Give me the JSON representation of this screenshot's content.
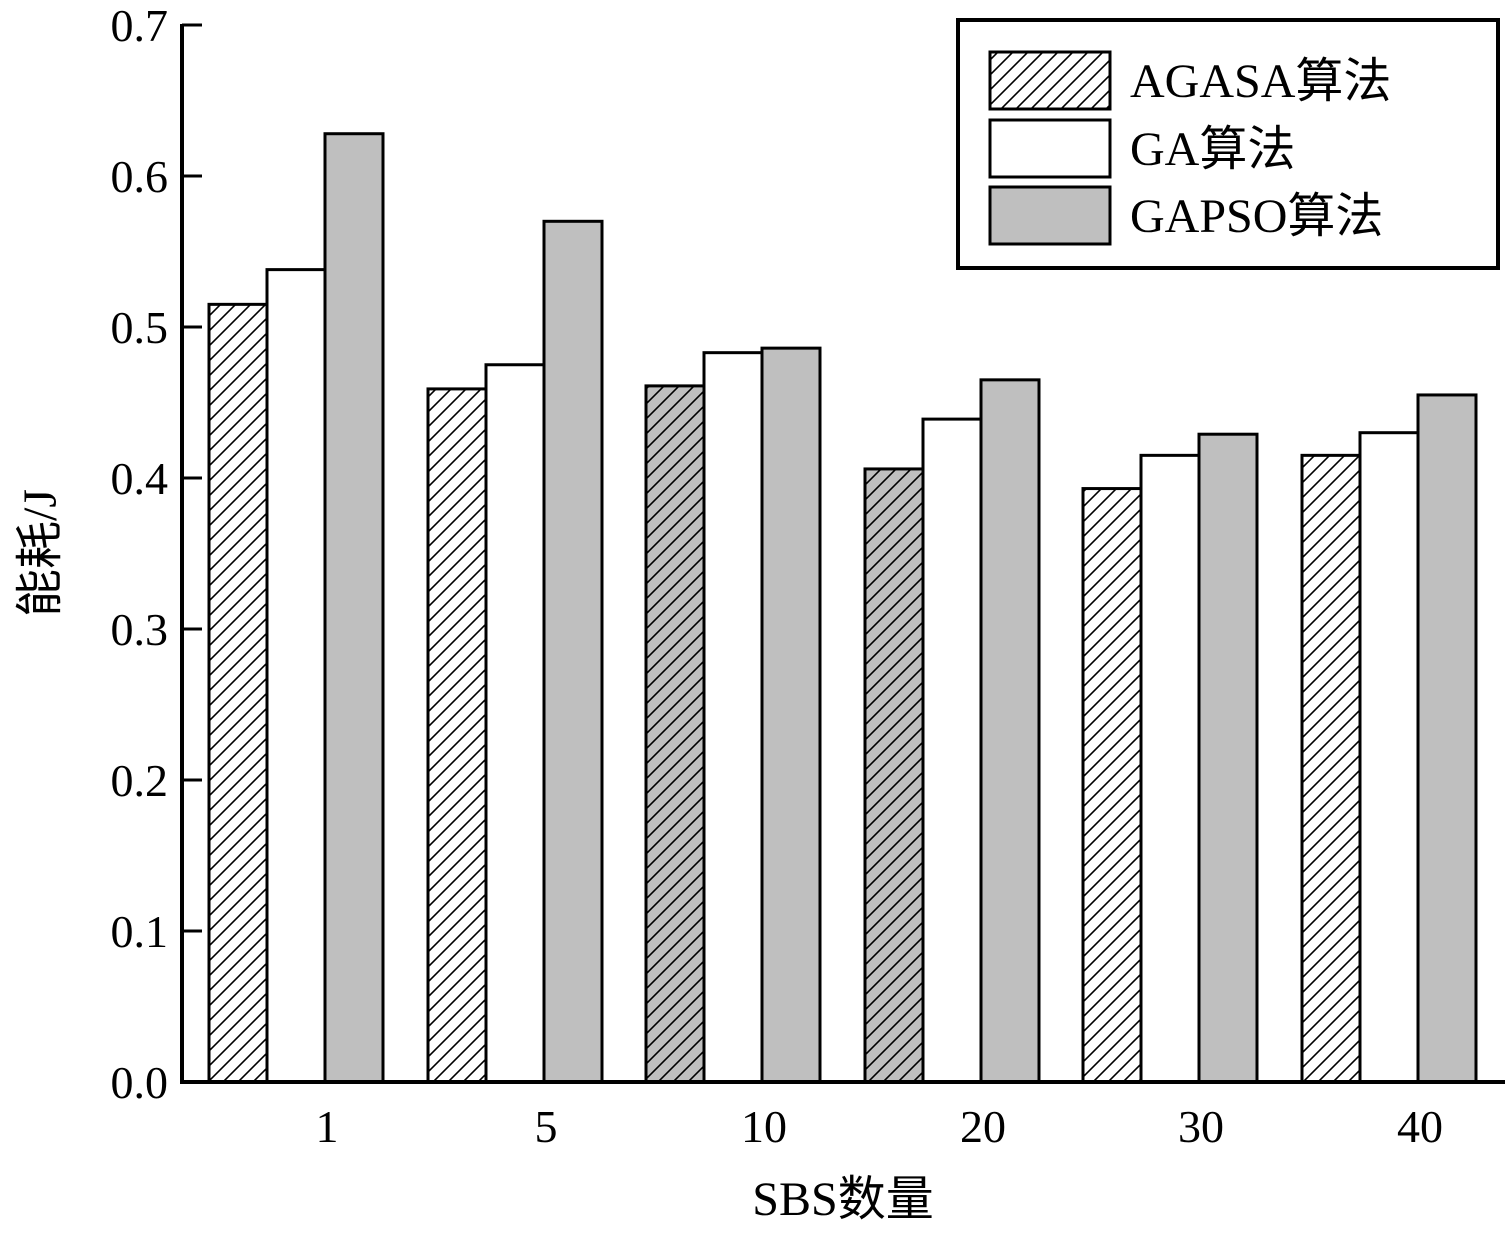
{
  "chart_data": {
    "type": "bar",
    "title": "",
    "xlabel": "SBS数量",
    "ylabel": "能耗/J",
    "ylim": [
      0,
      0.7
    ],
    "yticks": [
      "0.0",
      "0.1",
      "0.2",
      "0.3",
      "0.4",
      "0.5",
      "0.6",
      "0.7"
    ],
    "categories": [
      "1",
      "5",
      "10",
      "20",
      "30",
      "40"
    ],
    "grid": false,
    "legend_position": "top-right",
    "series": [
      {
        "name": "AGASA算法",
        "values": [
          0.515,
          0.459,
          0.461,
          0.406,
          0.393,
          0.415
        ],
        "fill": "hatch",
        "hatch_background": [
          "#ffffff",
          "#ffffff",
          "#bfbfbf",
          "#bfbfbf",
          "#ffffff",
          "#ffffff"
        ]
      },
      {
        "name": "GA算法",
        "values": [
          0.538,
          0.475,
          0.483,
          0.439,
          0.415,
          0.43
        ],
        "fill": "#ffffff"
      },
      {
        "name": "GAPSO算法",
        "values": [
          0.628,
          0.57,
          0.486,
          0.465,
          0.429,
          0.455
        ],
        "fill": "#bfbfbf"
      }
    ]
  }
}
